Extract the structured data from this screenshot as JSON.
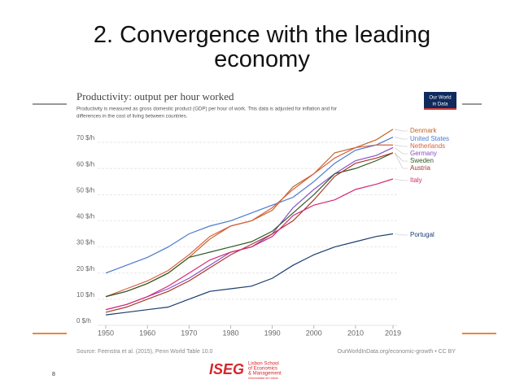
{
  "slide": {
    "title": "2. Convergence with the leading economy",
    "page_number": "8",
    "logo": {
      "mark": "ISEG",
      "lines": [
        "Lisbon School",
        "of Economics",
        "& Management"
      ],
      "university": "Universidade de Lisboa"
    },
    "badge": [
      "Our World",
      "in Data"
    ]
  },
  "chart_data": {
    "type": "line",
    "title": "Productivity: output per hour worked",
    "subtitle": [
      "Productivity is measured as gross domestic product (GDP) per hour of work. This data is adjusted for inflation and for",
      "differences in the cost of living between countries."
    ],
    "source": "Source: Feenstra et al. (2015), Penn World Table 10.0",
    "credit": "OurWorldInData.org/economic-growth • CC BY",
    "x": [
      1950,
      1955,
      1960,
      1965,
      1970,
      1975,
      1980,
      1985,
      1990,
      1995,
      2000,
      2005,
      2010,
      2015,
      2019
    ],
    "xlim": [
      1950,
      2019
    ],
    "xticks": [
      1950,
      1960,
      1970,
      1980,
      1990,
      2000,
      2010,
      2019
    ],
    "ylim": [
      0,
      70
    ],
    "yticks": [
      {
        "value": 0,
        "label": "0 $/h"
      },
      {
        "value": 10,
        "label": "10 $/h"
      },
      {
        "value": 20,
        "label": "20 $/h"
      },
      {
        "value": 30,
        "label": "30 $/h"
      },
      {
        "value": 40,
        "label": "40 $/h"
      },
      {
        "value": 50,
        "label": "50 $/h"
      },
      {
        "value": 60,
        "label": "60 $/h"
      },
      {
        "value": 70,
        "label": "70 $/h"
      }
    ],
    "grid": true,
    "series": [
      {
        "name": "Denmark",
        "color": "#c0662e",
        "values": [
          11,
          13,
          16,
          20,
          26,
          33,
          38,
          40,
          44,
          53,
          58,
          66,
          68,
          71,
          75
        ]
      },
      {
        "name": "United States",
        "color": "#4a7bd0",
        "values": [
          20,
          23,
          26,
          30,
          35,
          38,
          40,
          43,
          46,
          49,
          55,
          62,
          67,
          69,
          72
        ]
      },
      {
        "name": "Netherlands",
        "color": "#d9603f",
        "values": [
          11,
          14,
          17,
          21,
          27,
          34,
          38,
          40,
          45,
          52,
          58,
          64,
          68,
          69,
          69
        ]
      },
      {
        "name": "Germany",
        "color": "#8a4fc2",
        "values": [
          6,
          8,
          11,
          14,
          18,
          23,
          28,
          30,
          35,
          45,
          52,
          58,
          63,
          65,
          68
        ]
      },
      {
        "name": "Sweden",
        "color": "#2e5b27",
        "values": [
          11,
          13,
          16,
          20,
          26,
          28,
          30,
          32,
          36,
          43,
          50,
          58,
          60,
          63,
          66
        ]
      },
      {
        "name": "Austria",
        "color": "#a8392a",
        "values": [
          5,
          7,
          10,
          13,
          17,
          22,
          27,
          31,
          35,
          40,
          48,
          57,
          62,
          64,
          66
        ]
      },
      {
        "name": "Italy",
        "color": "#d42a72",
        "values": [
          6,
          8,
          11,
          15,
          20,
          25,
          28,
          30,
          34,
          42,
          46,
          48,
          52,
          54,
          56
        ]
      },
      {
        "name": "Portugal",
        "color": "#1c3d6e",
        "values": [
          4,
          5,
          6,
          7,
          10,
          13,
          14,
          15,
          18,
          23,
          27,
          30,
          32,
          34,
          35
        ]
      }
    ]
  }
}
